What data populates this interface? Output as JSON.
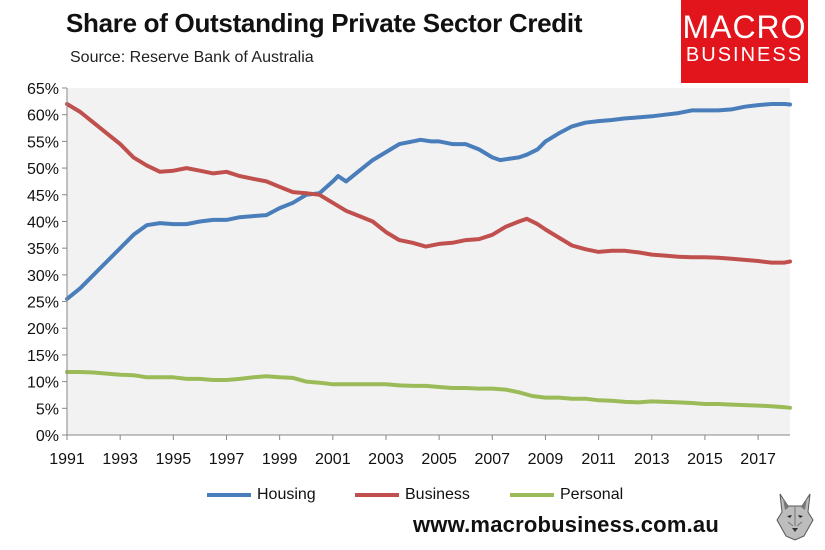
{
  "header": {
    "title": "Share of Outstanding Private Sector Credit",
    "subtitle": "Source: Reserve Bank of Australia"
  },
  "logo": {
    "line1": "MACRO",
    "line2": "BUSINESS",
    "color": "#e2151c"
  },
  "footer": {
    "url": "www.macrobusiness.com.au"
  },
  "colors": {
    "housing": "#4a7ebb",
    "business": "#c0504d",
    "personal": "#9bbb59",
    "plot_bg": "#f2f2f2"
  },
  "chart_data": {
    "type": "line",
    "title": "Share of Outstanding Private Sector Credit",
    "xlabel": "",
    "ylabel": "",
    "xlim": [
      1991,
      2018.2
    ],
    "ylim": [
      0,
      65
    ],
    "y_ticks": [
      "0%",
      "5%",
      "10%",
      "15%",
      "20%",
      "25%",
      "30%",
      "35%",
      "40%",
      "45%",
      "50%",
      "55%",
      "60%",
      "65%"
    ],
    "x_ticks": [
      "1991",
      "1993",
      "1995",
      "1997",
      "1999",
      "2001",
      "2003",
      "2005",
      "2007",
      "2009",
      "2011",
      "2013",
      "2015",
      "2017"
    ],
    "legend_position": "bottom",
    "series": [
      {
        "name": "Housing",
        "color": "#4a7ebb",
        "x": [
          1991.0,
          1991.5,
          1992.0,
          1992.5,
          1993.0,
          1993.5,
          1994.0,
          1994.5,
          1995.0,
          1995.5,
          1996.0,
          1996.5,
          1997.0,
          1997.5,
          1998.0,
          1998.5,
          1999.0,
          1999.5,
          2000.0,
          2000.5,
          2001.0,
          2001.2,
          2001.5,
          2002.0,
          2002.5,
          2003.0,
          2003.5,
          2004.0,
          2004.3,
          2004.7,
          2005.0,
          2005.5,
          2006.0,
          2006.5,
          2007.0,
          2007.3,
          2007.7,
          2008.0,
          2008.3,
          2008.7,
          2009.0,
          2009.5,
          2010.0,
          2010.5,
          2011.0,
          2011.5,
          2012.0,
          2012.5,
          2013.0,
          2013.5,
          2014.0,
          2014.5,
          2015.0,
          2015.5,
          2016.0,
          2016.5,
          2017.0,
          2017.5,
          2018.0,
          2018.2
        ],
        "values": [
          25.5,
          27.5,
          30.0,
          32.5,
          35.0,
          37.5,
          39.3,
          39.7,
          39.5,
          39.5,
          40.0,
          40.3,
          40.3,
          40.8,
          41.0,
          41.2,
          42.5,
          43.5,
          45.0,
          45.3,
          47.5,
          48.5,
          47.5,
          49.5,
          51.5,
          53.0,
          54.5,
          55.0,
          55.3,
          55.0,
          55.0,
          54.5,
          54.5,
          53.5,
          52.0,
          51.5,
          51.8,
          52.0,
          52.5,
          53.5,
          55.0,
          56.5,
          57.8,
          58.5,
          58.8,
          59.0,
          59.3,
          59.5,
          59.7,
          60.0,
          60.3,
          60.8,
          60.8,
          60.8,
          61.0,
          61.5,
          61.8,
          62.0,
          62.0,
          61.9
        ]
      },
      {
        "name": "Business",
        "color": "#c0504d",
        "x": [
          1991.0,
          1991.5,
          1992.0,
          1992.5,
          1993.0,
          1993.5,
          1994.0,
          1994.5,
          1995.0,
          1995.5,
          1996.0,
          1996.5,
          1997.0,
          1997.5,
          1998.0,
          1998.5,
          1999.0,
          1999.5,
          2000.0,
          2000.5,
          2001.0,
          2001.5,
          2002.0,
          2002.5,
          2003.0,
          2003.5,
          2004.0,
          2004.5,
          2005.0,
          2005.5,
          2006.0,
          2006.5,
          2007.0,
          2007.5,
          2008.0,
          2008.3,
          2008.7,
          2009.0,
          2009.5,
          2010.0,
          2010.5,
          2011.0,
          2011.5,
          2012.0,
          2012.5,
          2013.0,
          2013.5,
          2014.0,
          2014.5,
          2015.0,
          2015.5,
          2016.0,
          2016.5,
          2017.0,
          2017.5,
          2018.0,
          2018.2
        ],
        "values": [
          62.0,
          60.5,
          58.5,
          56.5,
          54.5,
          52.0,
          50.5,
          49.3,
          49.5,
          50.0,
          49.5,
          49.0,
          49.3,
          48.5,
          48.0,
          47.5,
          46.5,
          45.5,
          45.3,
          45.0,
          43.5,
          42.0,
          41.0,
          40.0,
          38.0,
          36.5,
          36.0,
          35.3,
          35.8,
          36.0,
          36.5,
          36.7,
          37.5,
          39.0,
          40.0,
          40.5,
          39.5,
          38.5,
          37.0,
          35.5,
          34.8,
          34.3,
          34.5,
          34.5,
          34.2,
          33.8,
          33.6,
          33.4,
          33.3,
          33.3,
          33.2,
          33.0,
          32.8,
          32.6,
          32.3,
          32.3,
          32.5
        ]
      },
      {
        "name": "Personal",
        "color": "#9bbb59",
        "x": [
          1991.0,
          1991.5,
          1992.0,
          1992.5,
          1993.0,
          1993.5,
          1994.0,
          1994.5,
          1995.0,
          1995.5,
          1996.0,
          1996.5,
          1997.0,
          1997.5,
          1998.0,
          1998.5,
          1999.0,
          1999.5,
          2000.0,
          2000.5,
          2001.0,
          2001.5,
          2002.0,
          2002.5,
          2003.0,
          2003.5,
          2004.0,
          2004.5,
          2005.0,
          2005.5,
          2006.0,
          2006.5,
          2007.0,
          2007.5,
          2008.0,
          2008.5,
          2009.0,
          2009.5,
          2010.0,
          2010.5,
          2011.0,
          2011.5,
          2012.0,
          2012.5,
          2013.0,
          2013.5,
          2014.0,
          2014.5,
          2015.0,
          2015.5,
          2016.0,
          2016.5,
          2017.0,
          2017.5,
          2018.0,
          2018.2
        ],
        "values": [
          11.8,
          11.8,
          11.7,
          11.5,
          11.3,
          11.2,
          10.8,
          10.8,
          10.8,
          10.5,
          10.5,
          10.3,
          10.3,
          10.5,
          10.8,
          11.0,
          10.8,
          10.7,
          10.0,
          9.8,
          9.5,
          9.5,
          9.5,
          9.5,
          9.5,
          9.3,
          9.2,
          9.2,
          9.0,
          8.8,
          8.8,
          8.7,
          8.7,
          8.5,
          8.0,
          7.3,
          7.0,
          7.0,
          6.8,
          6.8,
          6.5,
          6.4,
          6.2,
          6.1,
          6.3,
          6.2,
          6.1,
          6.0,
          5.8,
          5.8,
          5.7,
          5.6,
          5.5,
          5.4,
          5.2,
          5.1
        ]
      }
    ]
  }
}
